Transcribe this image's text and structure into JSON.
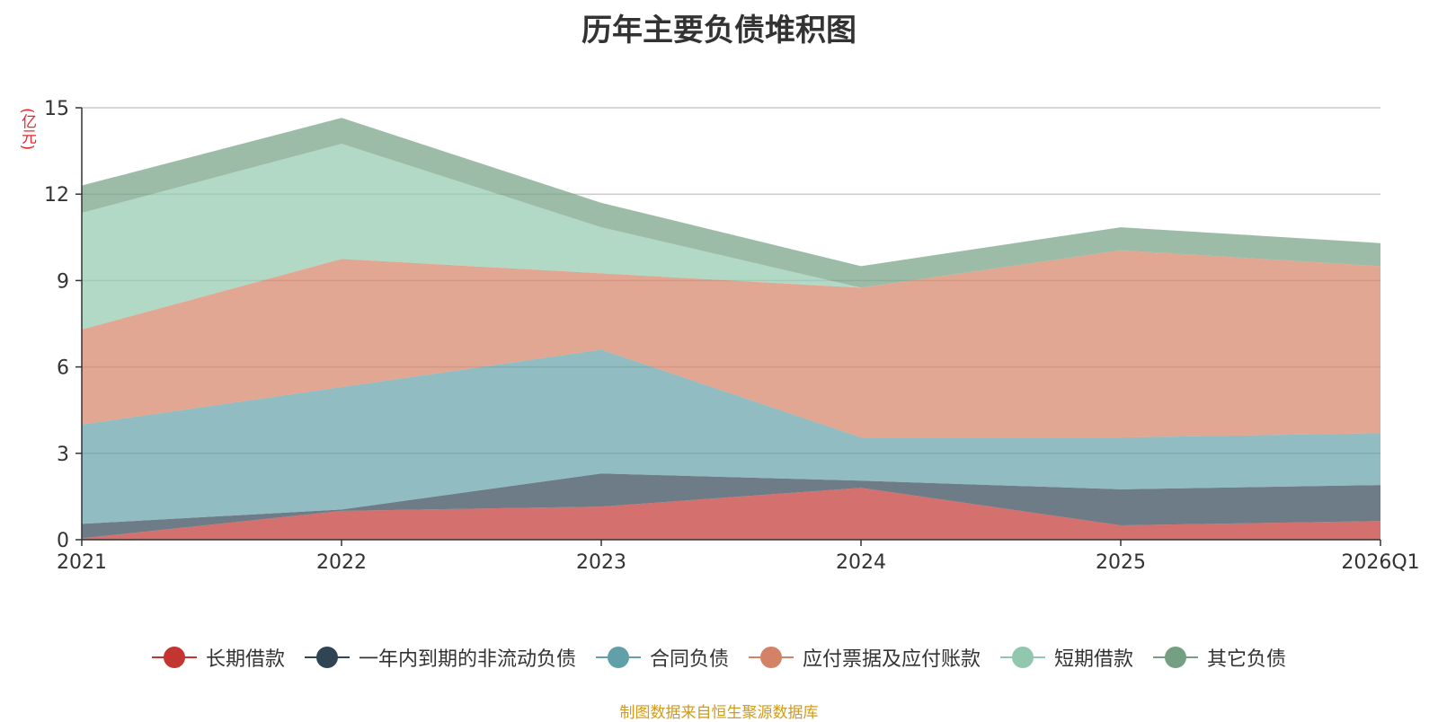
{
  "title": "历年主要负债堆积图",
  "unit_label": "(亿元)",
  "source_note": "制图数据来自恒生聚源数据库",
  "chart_data": {
    "type": "area",
    "stacked": true,
    "title": "历年主要负债堆积图",
    "ylabel": "(亿元)",
    "ylim": [
      0,
      15
    ],
    "yticks": [
      0,
      3,
      6,
      9,
      12,
      15
    ],
    "categories": [
      "2021",
      "2022",
      "2023",
      "2024",
      "2025",
      "2026Q1"
    ],
    "grid": true,
    "legend_position": "bottom",
    "series": [
      {
        "name": "长期借款",
        "color": "#c23531",
        "values": [
          0.05,
          1.0,
          1.15,
          1.8,
          0.5,
          0.65
        ]
      },
      {
        "name": "一年内到期的非流动负债",
        "color": "#2f4554",
        "values": [
          0.5,
          0.05,
          1.15,
          0.25,
          1.25,
          1.25
        ]
      },
      {
        "name": "合同负债",
        "color": "#61a0a8",
        "values": [
          3.45,
          4.25,
          4.3,
          1.5,
          1.8,
          1.8
        ]
      },
      {
        "name": "应付票据及应付账款",
        "color": "#d48265",
        "values": [
          3.3,
          4.45,
          2.65,
          5.2,
          6.5,
          5.8
        ]
      },
      {
        "name": "短期借款",
        "color": "#91c7ae",
        "values": [
          4.05,
          4.0,
          1.6,
          0.0,
          0.0,
          0.0
        ]
      },
      {
        "name": "其它负债",
        "color": "#749f83",
        "values": [
          0.95,
          0.9,
          0.85,
          0.75,
          0.8,
          0.8
        ]
      }
    ]
  }
}
